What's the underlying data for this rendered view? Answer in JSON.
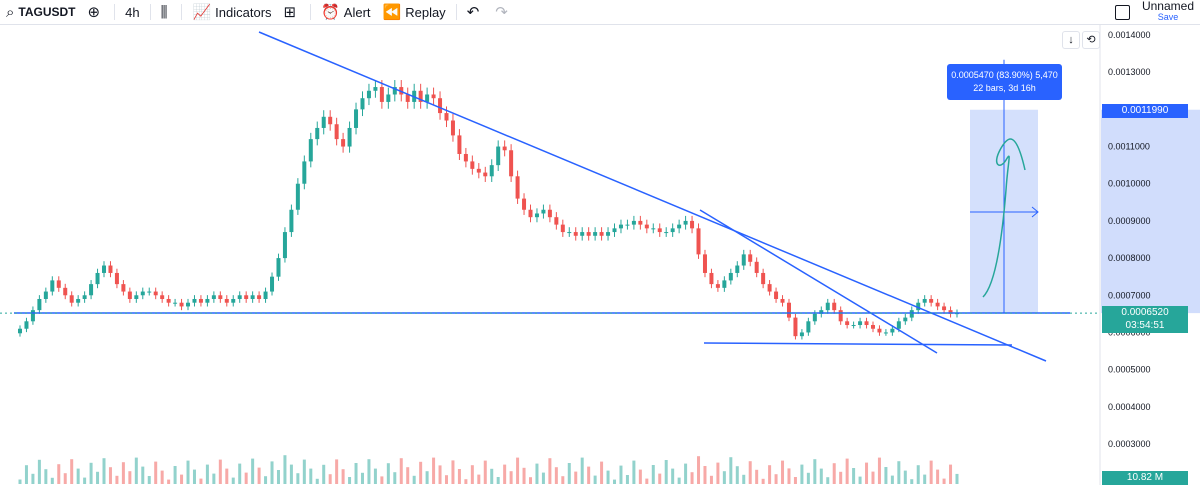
{
  "toolbar": {
    "symbol": "TAGUSDT",
    "interval": "4h",
    "indicators_label": "Indicators",
    "alert_label": "Alert",
    "replay_label": "Replay",
    "icons": [
      "search-icon",
      "add-symbol-icon",
      "candles-icon",
      "indicators-icon",
      "templates-icon",
      "alert-icon",
      "replay-icon",
      "undo-icon",
      "redo-icon"
    ]
  },
  "layout_name": {
    "title": "Unnamed",
    "save_label": "Save"
  },
  "chart_buttons": {
    "scroll": "↓",
    "refresh": "⟲"
  },
  "price_axis": {
    "ticks": [
      "0.0014000",
      "0.0013000",
      "0.0011000",
      "0.0010000",
      "0.0009000",
      "0.0008000",
      "0.0007000",
      "0.0006000",
      "0.0005000",
      "0.0004000",
      "0.0003000"
    ],
    "target_label": "0.0011990",
    "current_price": "0.0006520",
    "countdown": "03:54:51",
    "volume_label": "10.82 M"
  },
  "measure_tool": {
    "line1": "0.0005470 (83.90%) 5,470",
    "line2": "22 bars, 3d 16h"
  },
  "colors": {
    "up": "#26a69a",
    "down": "#ef5350",
    "trendline": "#2962ff",
    "measure_fill": "#c5d5fb",
    "axis_highlight": "#2962ff"
  },
  "chart_data": {
    "type": "candlestick",
    "symbol": "TAGUSDT",
    "interval": "4h",
    "price_scale": [
      0.0003,
      0.0014
    ],
    "last_price": 0.000652,
    "target_price": 0.001199,
    "series": [
      {
        "close_path": [
          0.00061,
          0.00063,
          0.00066,
          0.00069,
          0.00071,
          0.00074,
          0.00072,
          0.0007,
          0.00068,
          0.00069,
          0.0007,
          0.00073,
          0.00076,
          0.00078,
          0.00076,
          0.00073,
          0.00071,
          0.00069,
          0.0007,
          0.00071,
          0.00071,
          0.0007,
          0.00069,
          0.00068,
          0.00068,
          0.00067,
          0.00068,
          0.00069,
          0.00068,
          0.00069,
          0.0007,
          0.00069,
          0.00068,
          0.00069,
          0.0007,
          0.00069,
          0.0007,
          0.00069,
          0.00071,
          0.00075,
          0.0008,
          0.00087,
          0.00093,
          0.001,
          0.00106,
          0.00112,
          0.00115,
          0.00118,
          0.00116,
          0.00112,
          0.0011,
          0.00115,
          0.0012,
          0.00123,
          0.00125,
          0.00126,
          0.00122,
          0.00124,
          0.00126,
          0.00124,
          0.00122,
          0.00125,
          0.00122,
          0.00124,
          0.00123,
          0.00119,
          0.00117,
          0.00113,
          0.00108,
          0.00106,
          0.00104,
          0.00103,
          0.00102,
          0.00105,
          0.0011,
          0.00109,
          0.00102,
          0.00096,
          0.00093,
          0.00091,
          0.00092,
          0.00093,
          0.00091,
          0.00089,
          0.00087,
          0.00087,
          0.00086,
          0.00087,
          0.00086,
          0.00087,
          0.00086,
          0.00087,
          0.00088,
          0.00089,
          0.00089,
          0.0009,
          0.00089,
          0.00088,
          0.00088,
          0.00087,
          0.00087,
          0.00088,
          0.00089,
          0.0009,
          0.00088,
          0.00081,
          0.00076,
          0.00073,
          0.00072,
          0.00074,
          0.00076,
          0.00078,
          0.00081,
          0.00079,
          0.00076,
          0.00073,
          0.00071,
          0.00069,
          0.00068,
          0.00064,
          0.00059,
          0.0006,
          0.00063,
          0.00065,
          0.00066,
          0.00068,
          0.00066,
          0.00063,
          0.00062,
          0.00062,
          0.00063,
          0.00062,
          0.00061,
          0.0006,
          0.0006,
          0.00061,
          0.00063,
          0.00064,
          0.00066,
          0.00068,
          0.00069,
          0.00068,
          0.00067,
          0.00066,
          0.00065,
          0.000652
        ]
      }
    ],
    "annotations": [
      "descending trendline",
      "support line",
      "measure 0.0005470 (83.90%)",
      "projected path arrow"
    ]
  }
}
